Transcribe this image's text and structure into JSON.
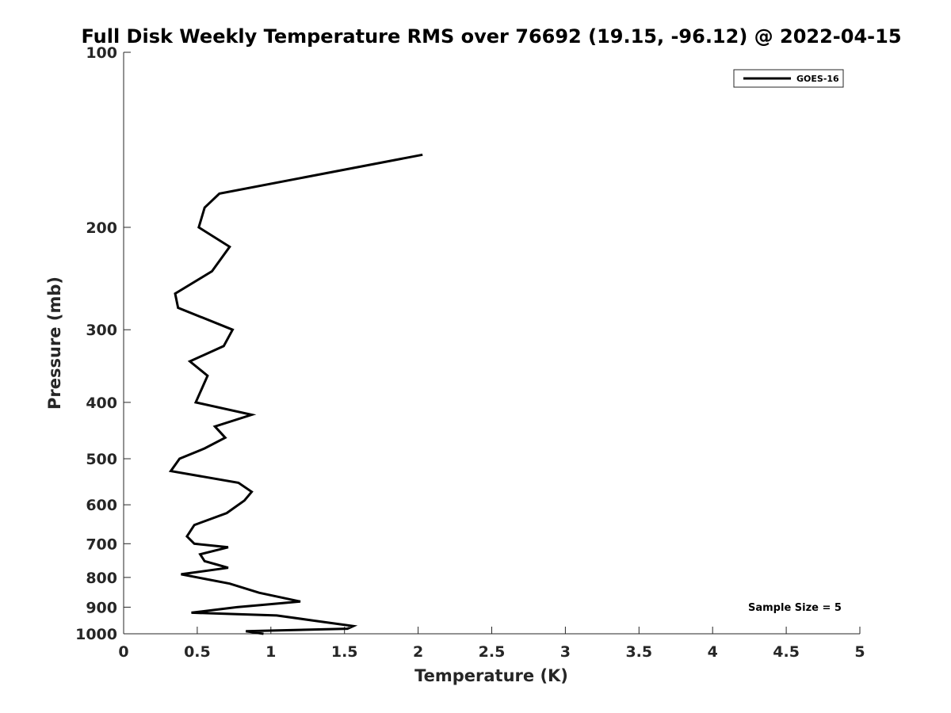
{
  "chart_data": {
    "type": "line",
    "title": "Full Disk Weekly Temperature RMS over 76692 (19.15, -96.12) @ 2022-04-15",
    "xlabel": "Temperature (K)",
    "ylabel": "Pressure (mb)",
    "xlim": [
      0,
      5
    ],
    "ylim": [
      100,
      1000
    ],
    "y_scale": "log",
    "y_reversed": true,
    "x_ticks": [
      "0",
      "0.5",
      "1",
      "1.5",
      "2",
      "2.5",
      "3",
      "3.5",
      "4",
      "4.5",
      "5"
    ],
    "y_ticks": [
      "100",
      "200",
      "300",
      "400",
      "500",
      "600",
      "700",
      "800",
      "900",
      "1000"
    ],
    "grid": false,
    "legend_position": "top-right",
    "annotation": "Sample Size = 5",
    "series": [
      {
        "name": "GOES-16",
        "color": "#000000",
        "points": [
          [
            2.03,
            150
          ],
          [
            0.65,
            175
          ],
          [
            0.55,
            185
          ],
          [
            0.51,
            200
          ],
          [
            0.72,
            216
          ],
          [
            0.6,
            238
          ],
          [
            0.35,
            260
          ],
          [
            0.37,
            275
          ],
          [
            0.74,
            300
          ],
          [
            0.68,
            320
          ],
          [
            0.45,
            340
          ],
          [
            0.57,
            360
          ],
          [
            0.49,
            400
          ],
          [
            0.87,
            420
          ],
          [
            0.62,
            440
          ],
          [
            0.69,
            460
          ],
          [
            0.55,
            480
          ],
          [
            0.38,
            500
          ],
          [
            0.32,
            525
          ],
          [
            0.78,
            550
          ],
          [
            0.87,
            570
          ],
          [
            0.82,
            590
          ],
          [
            0.7,
            620
          ],
          [
            0.48,
            650
          ],
          [
            0.43,
            680
          ],
          [
            0.48,
            700
          ],
          [
            0.71,
            710
          ],
          [
            0.52,
            730
          ],
          [
            0.55,
            750
          ],
          [
            0.63,
            760
          ],
          [
            0.71,
            770
          ],
          [
            0.39,
            790
          ],
          [
            0.72,
            820
          ],
          [
            0.92,
            850
          ],
          [
            1.2,
            880
          ],
          [
            0.77,
            900
          ],
          [
            0.46,
            920
          ],
          [
            1.04,
            930
          ],
          [
            1.3,
            950
          ],
          [
            1.56,
            970
          ],
          [
            1.52,
            980
          ],
          [
            0.83,
            990
          ],
          [
            0.95,
            1000
          ]
        ]
      }
    ]
  }
}
